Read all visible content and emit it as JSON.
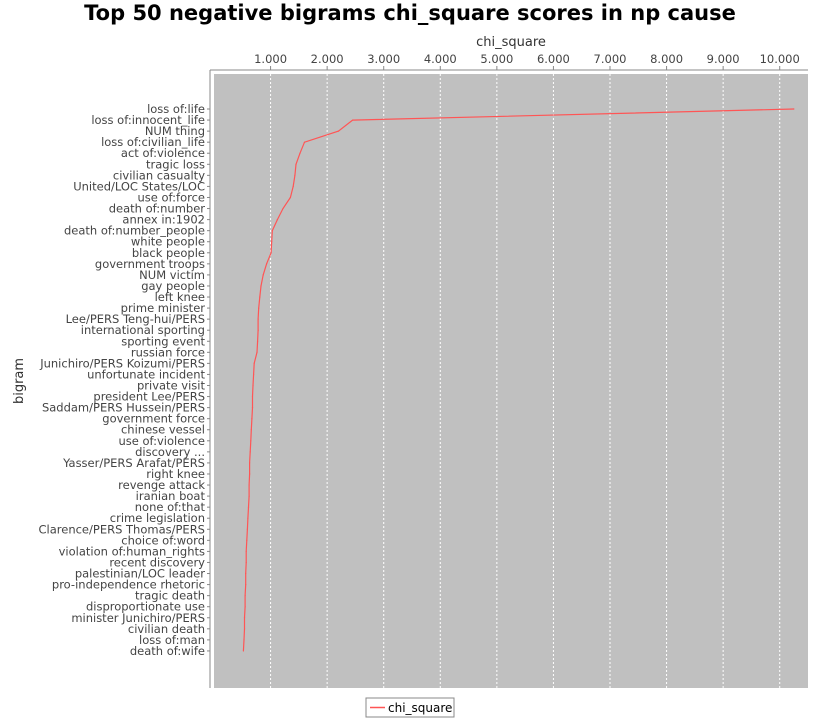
{
  "chart_data": {
    "type": "line",
    "orientation": "horizontal",
    "title": "Top 50 negative bigrams chi_square scores in np cause",
    "xlabel": "chi_square",
    "ylabel": "bigram",
    "x_axis_position": "top",
    "xlim": [
      0,
      10.5
    ],
    "x_ticks": [
      1,
      2,
      3,
      4,
      5,
      6,
      7,
      8,
      9,
      10
    ],
    "x_tick_labels": [
      "1.000",
      "2.000",
      "3.000",
      "4.000",
      "5.000",
      "6.000",
      "7.000",
      "8.000",
      "9.000",
      "10.000"
    ],
    "grid": true,
    "legend": "bottom-center",
    "plot_background": "#c0c0c0",
    "series_color": "#ff5555",
    "categories": [
      "loss of:life",
      "loss of:innocent_life",
      "NUM thing",
      "loss of:civilian_life",
      "act of:violence",
      "tragic loss",
      "civilian casualty",
      "United/LOC States/LOC",
      "use of:force",
      "death of:number",
      "annex in:1902",
      "death of:number_people",
      "white people",
      "black people",
      "government troops",
      "NUM victim",
      "gay people",
      "left knee",
      "prime minister",
      "Lee/PERS Teng-hui/PERS",
      "international sporting",
      "sporting event",
      "russian force",
      "Junichiro/PERS Koizumi/PERS",
      "unfortunate incident",
      "private visit",
      "president Lee/PERS",
      "Saddam/PERS Hussein/PERS",
      "government force",
      "chinese vessel",
      "use of:violence",
      "discovery ...",
      "Yasser/PERS Arafat/PERS",
      "right knee",
      "revenge attack",
      "iranian boat",
      "none of:that",
      "crime legislation",
      "Clarence/PERS Thomas/PERS",
      "choice of:word",
      "violation of:human_rights",
      "recent discovery",
      "palestinian/LOC leader",
      "pro-independence rhetoric",
      "tragic death",
      "disproportionate use",
      "minister Junichiro/PERS",
      "civilian death",
      "loss of:man",
      "death of:wife"
    ],
    "series": [
      {
        "name": "chi_square",
        "values": [
          10.25,
          2.45,
          2.2,
          1.6,
          1.52,
          1.45,
          1.43,
          1.4,
          1.35,
          1.22,
          1.12,
          1.03,
          1.02,
          1.01,
          0.93,
          0.87,
          0.83,
          0.81,
          0.79,
          0.78,
          0.78,
          0.77,
          0.76,
          0.71,
          0.7,
          0.69,
          0.68,
          0.68,
          0.67,
          0.66,
          0.65,
          0.64,
          0.63,
          0.63,
          0.62,
          0.62,
          0.61,
          0.6,
          0.59,
          0.58,
          0.57,
          0.57,
          0.56,
          0.56,
          0.55,
          0.55,
          0.54,
          0.54,
          0.53,
          0.52
        ]
      }
    ]
  }
}
